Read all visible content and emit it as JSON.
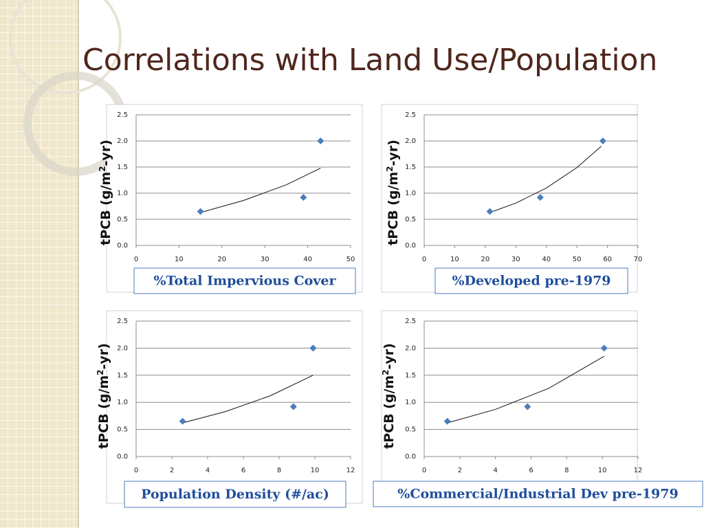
{
  "title": "Correlations with Land Use/Population",
  "chart_data": [
    {
      "type": "scatter",
      "ylabel": [
        "tPCB (g/m",
        "2",
        "-yr)"
      ],
      "xlabel": "%Total Impervious Cover",
      "x": [
        15,
        39,
        43
      ],
      "values": [
        0.65,
        0.92,
        2.0
      ],
      "color": "#4a7ebb",
      "trendline": {
        "x": [
          15,
          25,
          35,
          43
        ],
        "values": [
          0.63,
          0.86,
          1.16,
          1.48
        ]
      },
      "xlim": [
        0,
        50
      ],
      "xticks": [
        0,
        10,
        20,
        30,
        40,
        50
      ],
      "ylim": [
        0,
        2.5
      ],
      "yticks": [
        {
          "value": 0,
          "label": "0.0"
        },
        0.5,
        {
          "value": 1,
          "label": "1.0"
        },
        1.5,
        {
          "value": 2,
          "label": "2.0"
        },
        2.5
      ],
      "grid": true
    },
    {
      "type": "scatter",
      "ylabel": [
        "tPCB (g/m",
        "2",
        "-yr)"
      ],
      "xlabel": "%Developed pre-1979",
      "x": [
        21.5,
        38,
        58.5
      ],
      "values": [
        0.65,
        0.92,
        2.0
      ],
      "color": "#4a7ebb",
      "trendline": {
        "x": [
          21.5,
          30,
          40,
          50,
          58
        ],
        "values": [
          0.63,
          0.81,
          1.1,
          1.49,
          1.9
        ]
      },
      "xlim": [
        0,
        70
      ],
      "xticks": [
        0,
        10,
        20,
        30,
        40,
        50,
        60,
        70
      ],
      "ylim": [
        0,
        2.5
      ],
      "yticks": [
        {
          "value": 0,
          "label": "0.0"
        },
        0.5,
        {
          "value": 1,
          "label": "1.0"
        },
        1.5,
        {
          "value": 2,
          "label": "2.0"
        },
        2.5
      ],
      "grid": true
    },
    {
      "type": "scatter",
      "ylabel": [
        "tPCB (g/m",
        "2",
        "-yr)"
      ],
      "xlabel": "Population Density (#/ac)",
      "x": [
        2.6,
        8.8,
        9.9
      ],
      "values": [
        0.65,
        0.92,
        2.0
      ],
      "color": "#4a7ebb",
      "trendline": {
        "x": [
          2.6,
          5,
          7.5,
          9.9
        ],
        "values": [
          0.62,
          0.83,
          1.12,
          1.5
        ]
      },
      "xlim": [
        0,
        12
      ],
      "xticks": [
        0,
        2,
        4,
        6,
        8,
        10,
        12
      ],
      "ylim": [
        0,
        2.5
      ],
      "yticks": [
        {
          "value": 0,
          "label": "0.0"
        },
        0.5,
        {
          "value": 1,
          "label": "1.0"
        },
        1.5,
        {
          "value": 2,
          "label": "2.0"
        },
        2.5
      ],
      "grid": true
    },
    {
      "type": "scatter",
      "ylabel": [
        "tPCB (g/m",
        "2",
        "-yr)"
      ],
      "xlabel": "%Commercial/Industrial Dev pre-1979",
      "x": [
        1.3,
        5.8,
        10.1
      ],
      "values": [
        0.65,
        0.92,
        2.0
      ],
      "color": "#4a7ebb",
      "trendline": {
        "x": [
          1.3,
          4,
          7,
          10.1
        ],
        "values": [
          0.62,
          0.87,
          1.26,
          1.85
        ]
      },
      "xlim": [
        0,
        12
      ],
      "xticks": [
        0,
        2,
        4,
        6,
        8,
        10,
        12
      ],
      "ylim": [
        0,
        2.5
      ],
      "yticks": [
        {
          "value": 0,
          "label": "0.0"
        },
        0.5,
        {
          "value": 1,
          "label": "1.0"
        },
        1.5,
        {
          "value": 2,
          "label": "2.0"
        },
        2.5
      ],
      "grid": true
    }
  ]
}
